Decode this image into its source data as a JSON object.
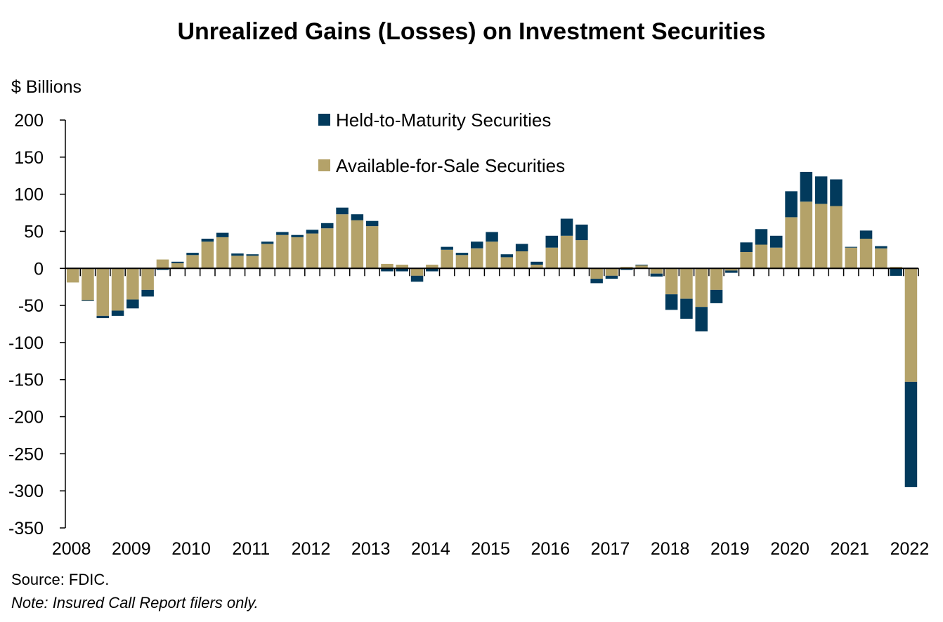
{
  "chart_data": {
    "type": "bar",
    "stacked": true,
    "title": "Unrealized Gains (Losses) on Investment Securities",
    "ylabel": "$ Billions",
    "xlabel": "",
    "ylim": [
      -350,
      200
    ],
    "yticks": [
      200,
      150,
      100,
      50,
      0,
      -50,
      -100,
      -150,
      -200,
      -250,
      -300,
      -350
    ],
    "xtick_labels": [
      "2008",
      "2009",
      "2010",
      "2011",
      "2012",
      "2013",
      "2014",
      "2015",
      "2016",
      "2017",
      "2018",
      "2019",
      "2020",
      "2021",
      "2022"
    ],
    "categories": [
      "2008Q1",
      "2008Q2",
      "2008Q3",
      "2008Q4",
      "2009Q1",
      "2009Q2",
      "2009Q3",
      "2009Q4",
      "2010Q1",
      "2010Q2",
      "2010Q3",
      "2010Q4",
      "2011Q1",
      "2011Q2",
      "2011Q3",
      "2011Q4",
      "2012Q1",
      "2012Q2",
      "2012Q3",
      "2012Q4",
      "2013Q1",
      "2013Q2",
      "2013Q3",
      "2013Q4",
      "2014Q1",
      "2014Q2",
      "2014Q3",
      "2014Q4",
      "2015Q1",
      "2015Q2",
      "2015Q3",
      "2015Q4",
      "2016Q1",
      "2016Q2",
      "2016Q3",
      "2016Q4",
      "2017Q1",
      "2017Q2",
      "2017Q3",
      "2017Q4",
      "2018Q1",
      "2018Q2",
      "2018Q3",
      "2018Q4",
      "2019Q1",
      "2019Q2",
      "2019Q3",
      "2019Q4",
      "2020Q1",
      "2020Q2",
      "2020Q3",
      "2020Q4",
      "2021Q1",
      "2021Q2",
      "2021Q3",
      "2021Q4",
      "2022Q1"
    ],
    "series": [
      {
        "name": "Available-for-Sale Securities",
        "color": "#b4a269",
        "values": [
          -19,
          -43,
          -64,
          -57,
          -42,
          -29,
          12,
          7,
          18,
          36,
          42,
          17,
          17,
          33,
          45,
          42,
          47,
          54,
          73,
          65,
          57,
          6,
          5,
          -10,
          5,
          25,
          18,
          27,
          36,
          15,
          23,
          5,
          28,
          44,
          38,
          -14,
          -10,
          2,
          4,
          -7,
          -35,
          -41,
          -52,
          -29,
          -3,
          22,
          32,
          28,
          69,
          90,
          87,
          84,
          28,
          40,
          27,
          2,
          -153
        ]
      },
      {
        "name": "Held-to-Maturity Securities",
        "color": "#023a5c",
        "values": [
          0,
          -1,
          -3,
          -7,
          -12,
          -9,
          -2,
          2,
          3,
          4,
          6,
          3,
          2,
          3,
          4,
          3,
          5,
          7,
          9,
          8,
          7,
          -4,
          -4,
          -8,
          -4,
          4,
          3,
          9,
          13,
          4,
          10,
          4,
          16,
          23,
          21,
          -6,
          -4,
          -2,
          1,
          -4,
          -21,
          -27,
          -33,
          -18,
          -3,
          13,
          21,
          16,
          35,
          40,
          37,
          36,
          1,
          11,
          3,
          -10,
          -142
        ]
      }
    ],
    "legend": {
      "placement": "top-center"
    },
    "grid": false,
    "notes": {
      "source": "Source: FDIC.",
      "note": "Note: Insured Call Report filers only."
    }
  }
}
